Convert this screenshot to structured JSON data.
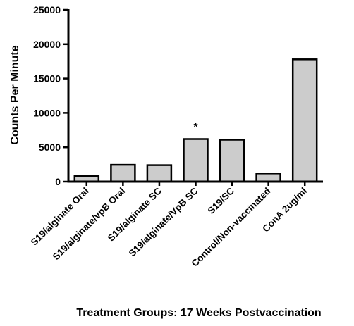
{
  "chart_data": {
    "type": "bar",
    "categories": [
      "S19/alginate Oral",
      "S19/alginate/vpB Oral",
      "S19/alginate SC",
      "S19/alginate/VpB SC",
      "S19/SC",
      "Control/Non-vaccinated",
      "ConA 2ug/ml"
    ],
    "values": [
      800,
      2450,
      2400,
      6200,
      6100,
      1200,
      17800
    ],
    "annotations": [
      {
        "category": "S19/alginate/VpB SC",
        "text": "*"
      }
    ],
    "title": "",
    "xlabel": "Treatment Groups: 17 Weeks Postvaccination",
    "ylabel": "Counts Per Minute",
    "ylim": [
      0,
      25000
    ],
    "yticks": [
      0,
      5000,
      10000,
      15000,
      20000,
      25000
    ],
    "grid": false,
    "legend": "none",
    "bar_color": "#cccccc",
    "bar_edge_color": "#000000"
  }
}
